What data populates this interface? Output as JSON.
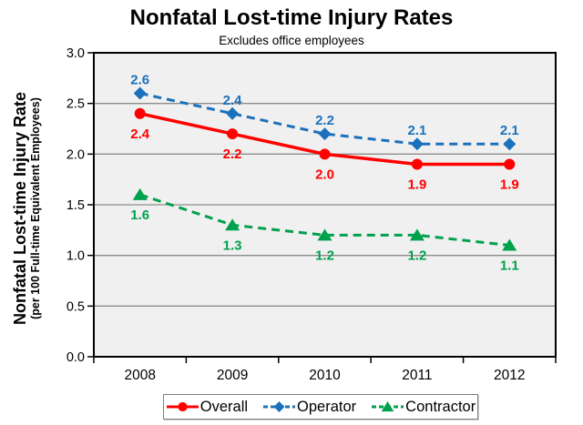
{
  "chart_data": {
    "type": "line",
    "title": "Nonfatal Lost-time Injury Rates",
    "subtitle": "Excludes office employees",
    "ylabel": "Nonfatal Lost-time Injury Rate",
    "ylabel_sub": "(per 100 Full-time Equivalent Employees)",
    "categories": [
      "2008",
      "2009",
      "2010",
      "2011",
      "2012"
    ],
    "series": [
      {
        "name": "Overall",
        "color": "#FF0000",
        "marker": "circle",
        "line": "solid",
        "label_position": "below",
        "values": [
          2.4,
          2.2,
          2.0,
          1.9,
          1.9
        ]
      },
      {
        "name": "Operator",
        "color": "#1B71BB",
        "marker": "diamond",
        "line": "dashed",
        "label_position": "above",
        "values": [
          2.6,
          2.4,
          2.2,
          2.1,
          2.1
        ]
      },
      {
        "name": "Contractor",
        "color": "#00A14D",
        "marker": "triangle",
        "line": "dashed",
        "label_position": "below",
        "values": [
          1.6,
          1.3,
          1.2,
          1.2,
          1.1
        ]
      }
    ],
    "ylim": [
      0,
      3
    ],
    "ytick_step": 0.5,
    "ytick_labels": [
      "0.0",
      "0.5",
      "1.0",
      "1.5",
      "2.0",
      "2.5",
      "3.0"
    ],
    "grid": true,
    "legend_position": "bottom",
    "colors": {
      "plot_background": "#F0F0F0",
      "gridline": "#8C8C8C",
      "axis": "#000000",
      "text": "#000000"
    }
  }
}
